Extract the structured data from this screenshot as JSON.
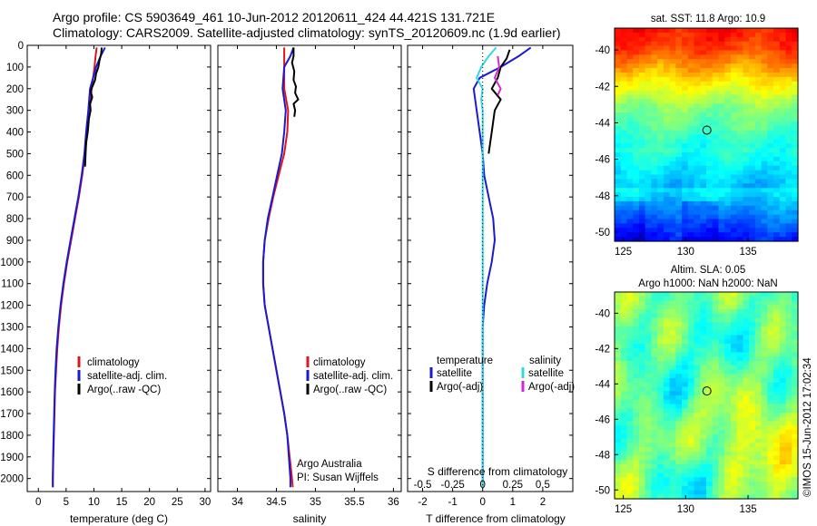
{
  "header": {
    "line1": "Argo profile: CS 5903649_461 10-Jun-2012 20120611_424 44.421S 131.721E",
    "line2": "Climatology: CARS2009. Satellite-adjusted climatology: synTS_20120609.nc (1.9d earlier)"
  },
  "colors": {
    "climatology": "#e0141e",
    "satellite": "#1a1ad2",
    "argo": "#000000",
    "satellite_s": "#30d8e8",
    "argo_s": "#d22ad2"
  },
  "depth_axis": {
    "ticks": [
      0,
      100,
      200,
      300,
      400,
      500,
      600,
      700,
      800,
      900,
      1000,
      1100,
      1200,
      1300,
      1400,
      1500,
      1600,
      1700,
      1800,
      1900,
      2000
    ],
    "range": [
      0,
      2060
    ]
  },
  "chart_data": [
    {
      "type": "line",
      "name": "temperature_profile",
      "xlabel": "temperature (deg C)",
      "xticks": [
        "0",
        "5",
        "10",
        "15",
        "20",
        "25",
        "30"
      ],
      "xlim": [
        -2,
        31
      ],
      "ylim": [
        0,
        2060
      ],
      "legend": {
        "placement": "lower-right",
        "entries": [
          "climatology",
          "satellite-adj. clim.",
          "Argo(..raw -QC)"
        ]
      },
      "series": [
        {
          "name": "climatology",
          "color": "#e0141e",
          "points": [
            [
              10.5,
              10
            ],
            [
              10.3,
              50
            ],
            [
              10.1,
              100
            ],
            [
              9.6,
              200
            ],
            [
              9.2,
              300
            ],
            [
              8.8,
              400
            ],
            [
              8.4,
              500
            ],
            [
              7.9,
              600
            ],
            [
              7.3,
              700
            ],
            [
              6.6,
              800
            ],
            [
              5.9,
              900
            ],
            [
              5.2,
              1000
            ],
            [
              4.6,
              1100
            ],
            [
              4.1,
              1200
            ],
            [
              3.7,
              1300
            ],
            [
              3.4,
              1400
            ],
            [
              3.2,
              1500
            ],
            [
              3.0,
              1600
            ],
            [
              2.9,
              1700
            ],
            [
              2.8,
              1800
            ],
            [
              2.7,
              1900
            ],
            [
              2.6,
              2000
            ],
            [
              2.6,
              2040
            ]
          ]
        },
        {
          "name": "satellite-adj. clim.",
          "color": "#1a1ad2",
          "points": [
            [
              12,
              10
            ],
            [
              11.2,
              50
            ],
            [
              10.4,
              100
            ],
            [
              9.3,
              200
            ],
            [
              9.0,
              300
            ],
            [
              8.6,
              400
            ],
            [
              8.3,
              500
            ],
            [
              7.8,
              600
            ],
            [
              7.2,
              700
            ],
            [
              6.5,
              800
            ],
            [
              5.8,
              900
            ],
            [
              5.1,
              1000
            ],
            [
              4.5,
              1100
            ],
            [
              4.0,
              1200
            ],
            [
              3.6,
              1300
            ],
            [
              3.3,
              1400
            ],
            [
              3.1,
              1500
            ],
            [
              2.95,
              1600
            ],
            [
              2.85,
              1700
            ],
            [
              2.75,
              1800
            ],
            [
              2.65,
              1900
            ],
            [
              2.6,
              2000
            ],
            [
              2.6,
              2040
            ]
          ]
        },
        {
          "name": "Argo(..raw -QC)",
          "color": "#000000",
          "points": [
            [
              11.4,
              10
            ],
            [
              11.3,
              40
            ],
            [
              11.0,
              70
            ],
            [
              10.8,
              100
            ],
            [
              10.4,
              130
            ],
            [
              10.2,
              160
            ],
            [
              9.9,
              180
            ],
            [
              9.4,
              210
            ],
            [
              9.7,
              240
            ],
            [
              9.3,
              270
            ],
            [
              9.4,
              300
            ],
            [
              9.1,
              340
            ],
            [
              8.9,
              400
            ],
            [
              8.6,
              450
            ],
            [
              8.5,
              500
            ],
            [
              8.4,
              560
            ]
          ]
        }
      ]
    },
    {
      "type": "line",
      "name": "salinity_profile",
      "xlabel": "salinity",
      "xticks": [
        "34",
        "34.5",
        "35",
        "35.5",
        "36"
      ],
      "xlim": [
        33.75,
        36.1
      ],
      "ylim": [
        0,
        2060
      ],
      "legend": {
        "placement": "lower-right",
        "entries": [
          "climatology",
          "satellite-adj. clim.",
          "Argo(..raw -QC)"
        ]
      },
      "series": [
        {
          "name": "climatology",
          "color": "#e0141e",
          "points": [
            [
              34.6,
              10
            ],
            [
              34.6,
              100
            ],
            [
              34.6,
              200
            ],
            [
              34.65,
              300
            ],
            [
              34.64,
              400
            ],
            [
              34.6,
              500
            ],
            [
              34.53,
              600
            ],
            [
              34.46,
              700
            ],
            [
              34.4,
              800
            ],
            [
              34.35,
              900
            ],
            [
              34.33,
              1000
            ],
            [
              34.33,
              1100
            ],
            [
              34.35,
              1200
            ],
            [
              34.4,
              1300
            ],
            [
              34.45,
              1400
            ],
            [
              34.5,
              1500
            ],
            [
              34.55,
              1600
            ],
            [
              34.6,
              1700
            ],
            [
              34.64,
              1800
            ],
            [
              34.67,
              1900
            ],
            [
              34.7,
              2000
            ],
            [
              34.71,
              2040
            ]
          ]
        },
        {
          "name": "satellite-adj. clim.",
          "color": "#1a1ad2",
          "points": [
            [
              34.72,
              10
            ],
            [
              34.68,
              50
            ],
            [
              34.6,
              100
            ],
            [
              34.58,
              200
            ],
            [
              34.62,
              300
            ],
            [
              34.6,
              400
            ],
            [
              34.57,
              500
            ],
            [
              34.51,
              600
            ],
            [
              34.45,
              700
            ],
            [
              34.39,
              800
            ],
            [
              34.35,
              900
            ],
            [
              34.33,
              1000
            ],
            [
              34.33,
              1100
            ],
            [
              34.35,
              1200
            ],
            [
              34.4,
              1300
            ],
            [
              34.45,
              1400
            ],
            [
              34.5,
              1500
            ],
            [
              34.55,
              1600
            ],
            [
              34.6,
              1700
            ],
            [
              34.64,
              1800
            ],
            [
              34.66,
              1900
            ],
            [
              34.68,
              2000
            ],
            [
              34.68,
              2040
            ]
          ]
        },
        {
          "name": "Argo(..raw -QC)",
          "color": "#000000",
          "points": [
            [
              34.72,
              10
            ],
            [
              34.72,
              50
            ],
            [
              34.7,
              80
            ],
            [
              34.73,
              120
            ],
            [
              34.72,
              160
            ],
            [
              34.75,
              190
            ],
            [
              34.74,
              220
            ],
            [
              34.78,
              250
            ],
            [
              34.72,
              270
            ],
            [
              34.74,
              300
            ],
            [
              34.73,
              330
            ]
          ]
        }
      ]
    },
    {
      "type": "line",
      "name": "difference_profile",
      "xlabel": "T difference from climatology",
      "xlabel2": "S difference from climatology",
      "xticks": [
        "-2",
        "-1",
        "0",
        "1",
        "2"
      ],
      "xticks2": [
        "-0.5",
        "-0.25",
        "0",
        "0.25",
        "0.5"
      ],
      "xlim": [
        -2.5,
        3
      ],
      "ylim": [
        0,
        2060
      ],
      "legend": {
        "placement": "lower-center",
        "headers": [
          "temperature",
          "salinity"
        ],
        "entries": [
          "satellite",
          "Argo(-adj)",
          "satellite",
          "Argo(-adj)"
        ]
      },
      "series": [
        {
          "name": "temperature satellite",
          "color": "#1a1ad2",
          "points": [
            [
              1.6,
              10
            ],
            [
              1.2,
              50
            ],
            [
              0.6,
              100
            ],
            [
              -0.1,
              150
            ],
            [
              -0.3,
              200
            ],
            [
              -0.2,
              300
            ],
            [
              -0.1,
              400
            ],
            [
              0,
              500
            ],
            [
              0.05,
              600
            ],
            [
              0.2,
              700
            ],
            [
              0.35,
              800
            ],
            [
              0.4,
              900
            ],
            [
              0.3,
              1000
            ],
            [
              0.15,
              1100
            ],
            [
              0.05,
              1200
            ],
            [
              0,
              1300
            ],
            [
              0,
              1500
            ],
            [
              0,
              2040
            ]
          ]
        },
        {
          "name": "temperature Argo(-adj)",
          "color": "#000000",
          "points": [
            [
              0.9,
              20
            ],
            [
              0.8,
              60
            ],
            [
              0.6,
              100
            ],
            [
              0.5,
              150
            ],
            [
              0.3,
              200
            ],
            [
              0.6,
              250
            ],
            [
              0.4,
              300
            ],
            [
              0.3,
              400
            ],
            [
              0.2,
              500
            ]
          ]
        },
        {
          "name": "salinity satellite",
          "color": "#30d8e8",
          "points": [
            [
              0.45,
              10
            ],
            [
              0.2,
              50
            ],
            [
              -0.05,
              100
            ],
            [
              -0.2,
              150
            ],
            [
              0,
              200
            ],
            [
              -0.05,
              250
            ],
            [
              0,
              300
            ],
            [
              0,
              500
            ],
            [
              0,
              700
            ],
            [
              0,
              900
            ],
            [
              0,
              1100
            ],
            [
              0,
              1400
            ],
            [
              0,
              2040
            ]
          ]
        },
        {
          "name": "salinity Argo(-adj)",
          "color": "#d22ad2",
          "points": [
            [
              0.5,
              50
            ],
            [
              0.55,
              100
            ],
            [
              0.4,
              150
            ],
            [
              0.6,
              200
            ],
            [
              0.5,
              230
            ]
          ]
        }
      ]
    },
    {
      "type": "heatmap",
      "name": "sst_map",
      "title": "sat. SST: 11.8  Argo: 10.9",
      "xticks": [
        "125",
        "130",
        "135"
      ],
      "yticks": [
        "-40",
        "-42",
        "-44",
        "-46",
        "-48",
        "-50"
      ],
      "xlim": [
        124.3,
        139
      ],
      "ylim": [
        -50.5,
        -38.8
      ],
      "marker": {
        "lon": 131.7,
        "lat": -44.4
      }
    },
    {
      "type": "heatmap",
      "name": "sla_map",
      "title": "Altim. SLA: 0.05",
      "subtitle": "Argo h1000: NaN  h2000: NaN",
      "xticks": [
        "125",
        "130",
        "135"
      ],
      "yticks": [
        "-40",
        "-42",
        "-44",
        "-46",
        "-48",
        "-50"
      ],
      "xlim": [
        124.3,
        139
      ],
      "ylim": [
        -50.5,
        -38.8
      ],
      "marker": {
        "lon": 131.7,
        "lat": -44.4
      }
    }
  ],
  "footer": {
    "org_left": "Argo Australia",
    "org_right": "PI: Susan Wijffels",
    "stamp": "©IMOS 15-Jun-2012 17:02:34"
  }
}
